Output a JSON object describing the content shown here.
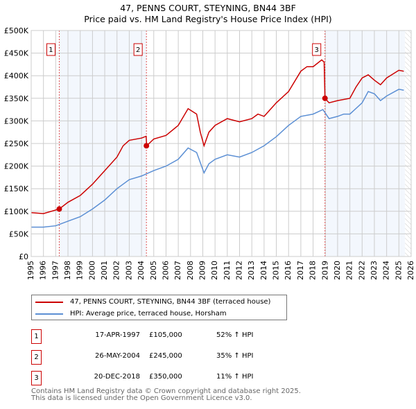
{
  "chart_data": {
    "type": "line",
    "title": "47, PENNS COURT, STEYNING, BN44 3BF",
    "subtitle": "Price paid vs. HM Land Registry's House Price Index (HPI)",
    "xlim": [
      1995,
      2026
    ],
    "ylim": [
      0,
      500000
    ],
    "x_ticks": [
      "1995",
      "1996",
      "1997",
      "1998",
      "1999",
      "2000",
      "2001",
      "2002",
      "2003",
      "2004",
      "2005",
      "2006",
      "2007",
      "2008",
      "2009",
      "2010",
      "2011",
      "2012",
      "2013",
      "2014",
      "2015",
      "2016",
      "2017",
      "2018",
      "2019",
      "2020",
      "2021",
      "2022",
      "2023",
      "2024",
      "2025",
      "2026"
    ],
    "y_ticks": [
      {
        "v": 0,
        "label": "£0"
      },
      {
        "v": 50000,
        "label": "£50K"
      },
      {
        "v": 100000,
        "label": "£100K"
      },
      {
        "v": 150000,
        "label": "£150K"
      },
      {
        "v": 200000,
        "label": "£200K"
      },
      {
        "v": 250000,
        "label": "£250K"
      },
      {
        "v": 300000,
        "label": "£300K"
      },
      {
        "v": 350000,
        "label": "£350K"
      },
      {
        "v": 400000,
        "label": "£400K"
      },
      {
        "v": 450000,
        "label": "£450K"
      },
      {
        "v": 500000,
        "label": "£500K"
      }
    ],
    "grid": true,
    "series": [
      {
        "name": "47, PENNS COURT, STEYNING, BN44 3BF (terraced house)",
        "color": "#cc0000",
        "x": [
          1995,
          1996,
          1997.29,
          1998,
          1999,
          2000,
          2001,
          2002,
          2002.5,
          2003,
          2004,
          2004.38,
          2004.42,
          2005,
          2006,
          2007,
          2007.8,
          2008.5,
          2008.8,
          2009.1,
          2009.5,
          2010,
          2011,
          2012,
          2013,
          2013.5,
          2014,
          2015,
          2016,
          2017,
          2017.5,
          2018,
          2018.7,
          2018.9,
          2018.97,
          2019.3,
          2020,
          2021,
          2021.5,
          2022,
          2022.5,
          2023,
          2023.5,
          2024,
          2025,
          2025.4
        ],
        "y": [
          97000,
          95000,
          105000,
          120000,
          135000,
          160000,
          190000,
          220000,
          245000,
          257000,
          262000,
          266000,
          245000,
          260000,
          268000,
          290000,
          327000,
          315000,
          275000,
          245000,
          275000,
          290000,
          305000,
          298000,
          305000,
          315000,
          310000,
          340000,
          365000,
          410000,
          420000,
          420000,
          435000,
          430000,
          350000,
          340000,
          345000,
          350000,
          375000,
          395000,
          402000,
          390000,
          380000,
          395000,
          412000,
          410000
        ]
      },
      {
        "name": "HPI: Average price, terraced house, Horsham",
        "color": "#5b8fd4",
        "x": [
          1995,
          1996,
          1997,
          1998,
          1999,
          2000,
          2001,
          2002,
          2003,
          2004,
          2005,
          2006,
          2007,
          2007.8,
          2008.5,
          2009.1,
          2009.5,
          2010,
          2011,
          2012,
          2013,
          2014,
          2015,
          2016,
          2017,
          2018,
          2018.8,
          2019.3,
          2020,
          2020.5,
          2021,
          2022,
          2022.5,
          2023,
          2023.5,
          2024,
          2025,
          2025.4
        ],
        "y": [
          65000,
          65000,
          68000,
          78000,
          88000,
          105000,
          125000,
          150000,
          170000,
          178000,
          190000,
          200000,
          215000,
          240000,
          230000,
          185000,
          205000,
          215000,
          225000,
          220000,
          230000,
          245000,
          265000,
          290000,
          310000,
          315000,
          325000,
          305000,
          310000,
          315000,
          315000,
          340000,
          365000,
          360000,
          345000,
          355000,
          370000,
          368000
        ]
      }
    ],
    "sales": [
      {
        "n": "1",
        "x": 1997.29,
        "y": 105000
      },
      {
        "n": "2",
        "x": 2004.4,
        "y": 245000
      },
      {
        "n": "3",
        "x": 2018.97,
        "y": 350000
      }
    ],
    "shaded_ranges": [
      [
        1997.29,
        2004.4
      ],
      [
        2018.97,
        2025.5
      ]
    ],
    "hatched_from": 2025.5
  },
  "legend": [
    {
      "label": "47, PENNS COURT, STEYNING, BN44 3BF (terraced house)",
      "color": "#cc0000"
    },
    {
      "label": "HPI: Average price, terraced house, Horsham",
      "color": "#5b8fd4"
    }
  ],
  "table": [
    {
      "n": "1",
      "date": "17-APR-1997",
      "price": "£105,000",
      "hpi": "52% ↑ HPI"
    },
    {
      "n": "2",
      "date": "26-MAY-2004",
      "price": "£245,000",
      "hpi": "35% ↑ HPI"
    },
    {
      "n": "3",
      "date": "20-DEC-2018",
      "price": "£350,000",
      "hpi": "11% ↑ HPI"
    }
  ],
  "footer": [
    "Contains HM Land Registry data © Crown copyright and database right 2025.",
    "This data is licensed under the Open Government Licence v3.0."
  ]
}
